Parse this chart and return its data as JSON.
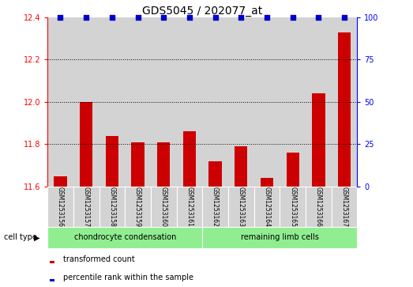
{
  "title": "GDS5045 / 202077_at",
  "samples": [
    "GSM1253156",
    "GSM1253157",
    "GSM1253158",
    "GSM1253159",
    "GSM1253160",
    "GSM1253161",
    "GSM1253162",
    "GSM1253163",
    "GSM1253164",
    "GSM1253165",
    "GSM1253166",
    "GSM1253167"
  ],
  "transformed_count": [
    11.65,
    12.0,
    11.84,
    11.81,
    11.81,
    11.86,
    11.72,
    11.79,
    11.64,
    11.76,
    12.04,
    12.33
  ],
  "percentile_rank": [
    100,
    100,
    100,
    100,
    100,
    100,
    100,
    100,
    100,
    100,
    100,
    100
  ],
  "ylim_left": [
    11.6,
    12.4
  ],
  "ylim_right": [
    0,
    100
  ],
  "yticks_left": [
    11.6,
    11.8,
    12.0,
    12.2,
    12.4
  ],
  "yticks_right": [
    0,
    25,
    50,
    75,
    100
  ],
  "bar_color": "#cc0000",
  "dot_color": "#0000cc",
  "group1_label": "chondrocyte condensation",
  "group2_label": "remaining limb cells",
  "group1_indices": [
    0,
    1,
    2,
    3,
    4,
    5
  ],
  "group2_indices": [
    6,
    7,
    8,
    9,
    10,
    11
  ],
  "group1_bg": "#90ee90",
  "group2_bg": "#90ee90",
  "cell_type_label": "cell type",
  "legend_bar_label": "transformed count",
  "legend_dot_label": "percentile rank within the sample",
  "background_color": "#ffffff",
  "col_bg": "#d3d3d3",
  "bar_width": 0.5
}
